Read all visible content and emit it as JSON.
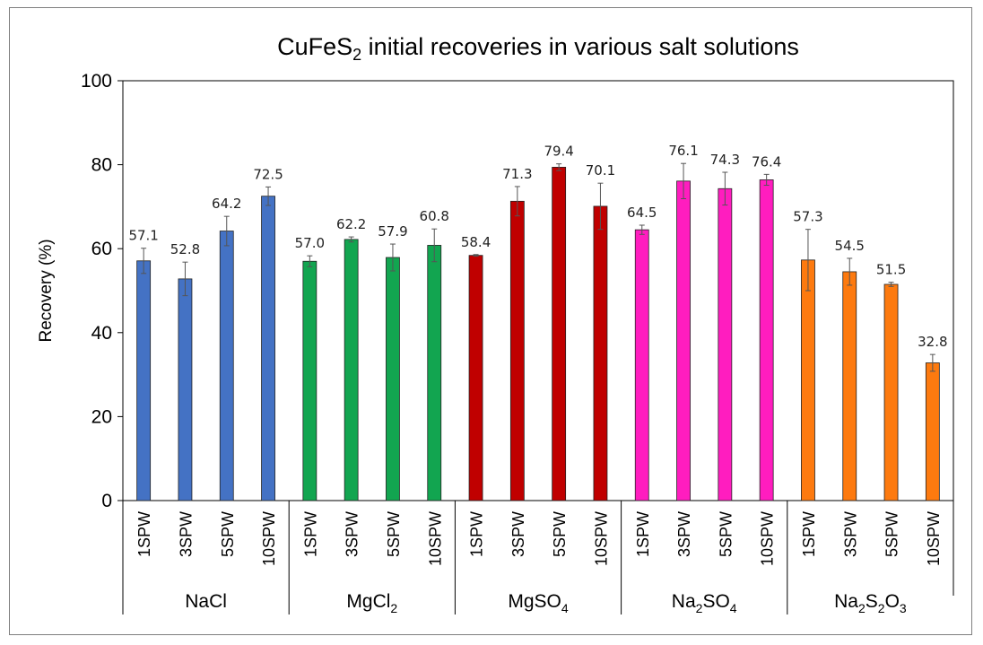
{
  "chart_data": {
    "type": "bar",
    "title_parts": [
      {
        "text": "CuFeS",
        "sub": false
      },
      {
        "text": "2",
        "sub": true
      },
      {
        "text": " initial recoveries in various salt solutions",
        "sub": false
      }
    ],
    "ylabel": "Recovery (%)",
    "ylim": [
      0,
      100
    ],
    "yticks": [
      0,
      20,
      40,
      60,
      80,
      100
    ],
    "groups": [
      {
        "name": "NaCl",
        "label_parts": [
          {
            "text": "NaCl",
            "sub": false
          }
        ],
        "color": "#4472c4",
        "categories": [
          "1SPW",
          "3SPW",
          "5SPW",
          "10SPW"
        ],
        "values": [
          57.1,
          52.8,
          64.2,
          72.5
        ],
        "labels": [
          "57.1",
          "52.8",
          "64.2",
          "72.5"
        ],
        "errors": [
          3.0,
          4.0,
          3.5,
          2.2
        ]
      },
      {
        "name": "MgCl2",
        "label_parts": [
          {
            "text": "MgCl",
            "sub": false
          },
          {
            "text": "2",
            "sub": true
          }
        ],
        "color": "#12a550",
        "categories": [
          "1SPW",
          "3SPW",
          "5SPW",
          "10SPW"
        ],
        "values": [
          57.0,
          62.2,
          57.9,
          60.8
        ],
        "labels": [
          "57.0",
          "62.2",
          "57.9",
          "60.8"
        ],
        "errors": [
          1.3,
          0.6,
          3.2,
          3.9
        ]
      },
      {
        "name": "MgSO4",
        "label_parts": [
          {
            "text": "MgSO",
            "sub": false
          },
          {
            "text": "4",
            "sub": true
          }
        ],
        "color": "#c00000",
        "categories": [
          "1SPW",
          "3SPW",
          "5SPW",
          "10SPW"
        ],
        "values": [
          58.4,
          71.3,
          79.4,
          70.1
        ],
        "labels": [
          "58.4",
          "71.3",
          "79.4",
          "70.1"
        ],
        "errors": [
          0.2,
          3.5,
          0.8,
          5.5
        ]
      },
      {
        "name": "Na2SO4",
        "label_parts": [
          {
            "text": "Na",
            "sub": false
          },
          {
            "text": "2",
            "sub": true
          },
          {
            "text": "SO",
            "sub": false
          },
          {
            "text": "4",
            "sub": true
          }
        ],
        "color": "#ff1dbf",
        "categories": [
          "1SPW",
          "3SPW",
          "5SPW",
          "10SPW"
        ],
        "values": [
          64.5,
          76.1,
          74.3,
          76.4
        ],
        "labels": [
          "64.5",
          "76.1",
          "74.3",
          "76.4"
        ],
        "errors": [
          1.1,
          4.2,
          3.9,
          1.3
        ]
      },
      {
        "name": "Na2S2O3",
        "label_parts": [
          {
            "text": "Na",
            "sub": false
          },
          {
            "text": "2",
            "sub": true
          },
          {
            "text": "S",
            "sub": false
          },
          {
            "text": "2",
            "sub": true
          },
          {
            "text": "O",
            "sub": false
          },
          {
            "text": "3",
            "sub": true
          }
        ],
        "color": "#fd7a0f",
        "categories": [
          "1SPW",
          "3SPW",
          "5SPW",
          "10SPW"
        ],
        "values": [
          57.3,
          54.5,
          51.5,
          32.8
        ],
        "labels": [
          "57.3",
          "54.5",
          "51.5",
          "32.8"
        ],
        "errors": [
          7.3,
          3.2,
          0.5,
          2.0
        ]
      }
    ]
  }
}
